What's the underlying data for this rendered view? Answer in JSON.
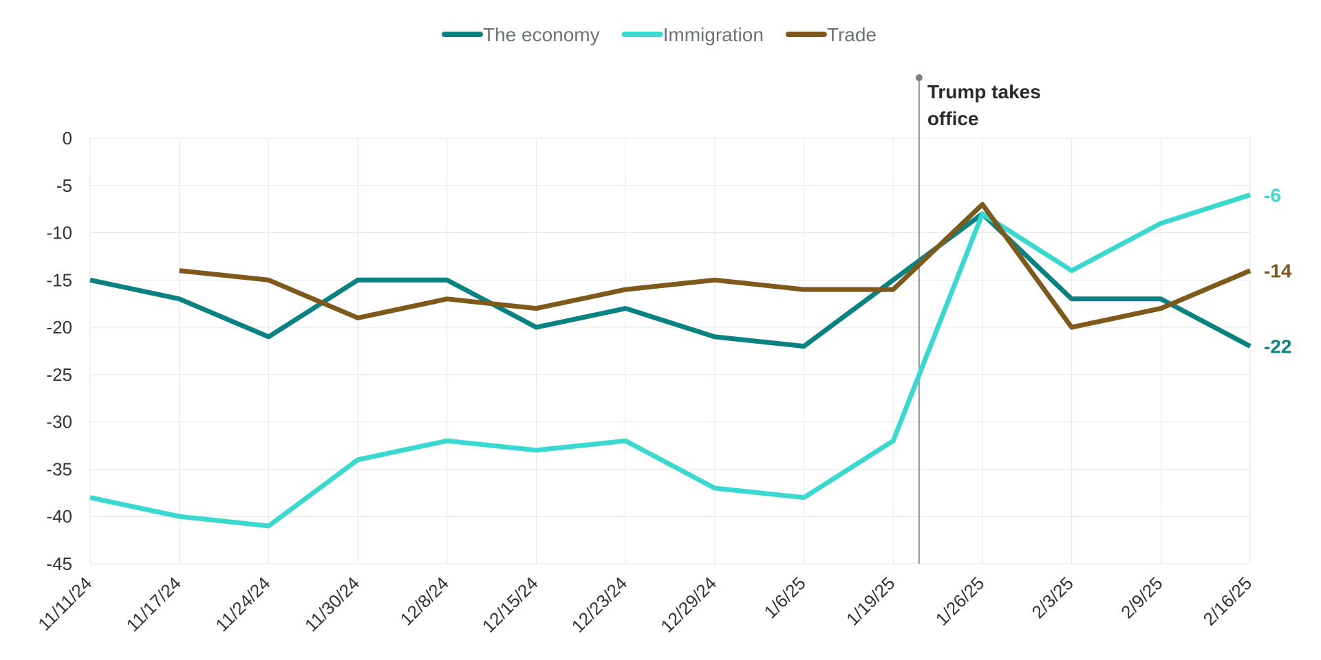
{
  "chart_data": {
    "type": "line",
    "categories": [
      "11/11/24",
      "11/17/24",
      "11/24/24",
      "11/30/24",
      "12/8/24",
      "12/15/24",
      "12/23/24",
      "12/29/24",
      "1/6/25",
      "1/19/25",
      "1/26/25",
      "2/3/25",
      "2/9/25",
      "2/16/25"
    ],
    "ylim": [
      -45,
      0
    ],
    "yticks": [
      0,
      -5,
      -10,
      -15,
      -20,
      -25,
      -30,
      -35,
      -40,
      -45
    ],
    "grid": true,
    "legend_position": "top-center",
    "series": [
      {
        "name": "The economy",
        "color": "#0b8282",
        "values": [
          -15,
          -17,
          -21,
          -15,
          -15,
          -20,
          -18,
          -21,
          -22,
          -15,
          -8,
          -17,
          -17,
          -22
        ],
        "end_label": "-22"
      },
      {
        "name": "Immigration",
        "color": "#3ad9d0",
        "values": [
          -38,
          -40,
          -41,
          -34,
          -32,
          -33,
          -32,
          -37,
          -38,
          -32,
          -8,
          -14,
          -9,
          -6
        ],
        "end_label": "-6"
      },
      {
        "name": "Trade",
        "color": "#7d5a1c",
        "values": [
          null,
          -14,
          -15,
          -19,
          -17,
          -18,
          -16,
          -15,
          -16,
          -16,
          -7,
          -20,
          -18,
          -14
        ],
        "end_label": "-14"
      }
    ],
    "annotation": {
      "lines": [
        "Trump takes",
        "office"
      ],
      "after_category_index": 9,
      "fraction_to_next": 0.29
    }
  }
}
